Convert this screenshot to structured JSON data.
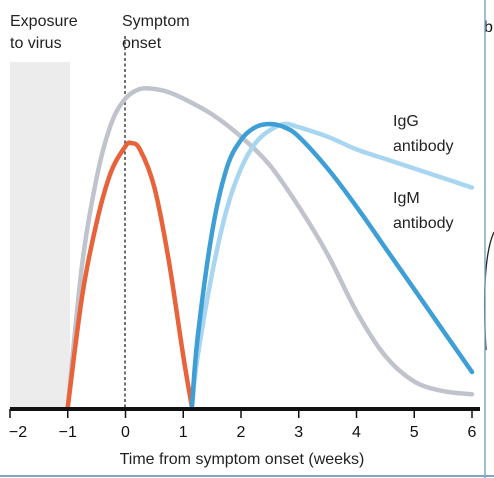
{
  "chart_data": {
    "type": "line",
    "xlabel": "Time from symptom onset (weeks)",
    "ylabel": "",
    "xlim": [
      -2,
      6
    ],
    "x_ticks": [
      "−2",
      "−1",
      "0",
      "1",
      "2",
      "3",
      "4",
      "5",
      "6"
    ],
    "grid": false,
    "legend": "inline labels",
    "annotations": {
      "exposure": [
        "Exposure",
        "to virus"
      ],
      "onset": [
        "Symptom",
        "onset"
      ],
      "exposure_period": [
        -2,
        -1
      ],
      "onset_x": 0
    },
    "series": [
      {
        "key": "grey",
        "color": "#bfc3cc",
        "x": [
          -1,
          -0.75,
          -0.5,
          -0.25,
          0,
          0.25,
          0.5,
          0.75,
          1,
          1.5,
          2,
          2.5,
          3,
          3.5,
          4,
          4.5,
          5,
          5.5,
          6
        ],
        "values": [
          0,
          0.45,
          0.72,
          0.89,
          0.97,
          1.0,
          1.0,
          0.99,
          0.97,
          0.92,
          0.85,
          0.76,
          0.63,
          0.48,
          0.3,
          0.16,
          0.08,
          0.05,
          0.04
        ]
      },
      {
        "key": "orange",
        "color": "#e8623a",
        "x": [
          -1,
          -0.75,
          -0.5,
          -0.25,
          0,
          0.1,
          0.25,
          0.5,
          0.75,
          1,
          1.15
        ],
        "values": [
          0,
          0.35,
          0.58,
          0.74,
          0.82,
          0.83,
          0.81,
          0.69,
          0.46,
          0.16,
          0
        ]
      },
      {
        "key": "igg",
        "name": "IgG antibody",
        "label_lines": [
          "IgG",
          "antibody"
        ],
        "color": "#a8d6f0",
        "x": [
          1.15,
          1.25,
          1.5,
          1.75,
          2,
          2.25,
          2.5,
          2.75,
          3,
          3.5,
          4,
          4.5,
          5,
          5.5,
          6
        ],
        "values": [
          0,
          0.16,
          0.42,
          0.62,
          0.75,
          0.83,
          0.87,
          0.89,
          0.88,
          0.85,
          0.81,
          0.78,
          0.75,
          0.72,
          0.69
        ]
      },
      {
        "key": "igm",
        "name": "IgM antibody",
        "label_lines": [
          "IgM",
          "antibody"
        ],
        "color": "#3d9fd6",
        "x": [
          1.15,
          1.25,
          1.5,
          1.75,
          2,
          2.25,
          2.5,
          2.75,
          3,
          3.5,
          4,
          4.5,
          5,
          5.5,
          6
        ],
        "values": [
          0,
          0.22,
          0.55,
          0.75,
          0.84,
          0.88,
          0.89,
          0.88,
          0.85,
          0.75,
          0.63,
          0.5,
          0.37,
          0.24,
          0.11
        ]
      }
    ]
  },
  "panel_letter": "b"
}
